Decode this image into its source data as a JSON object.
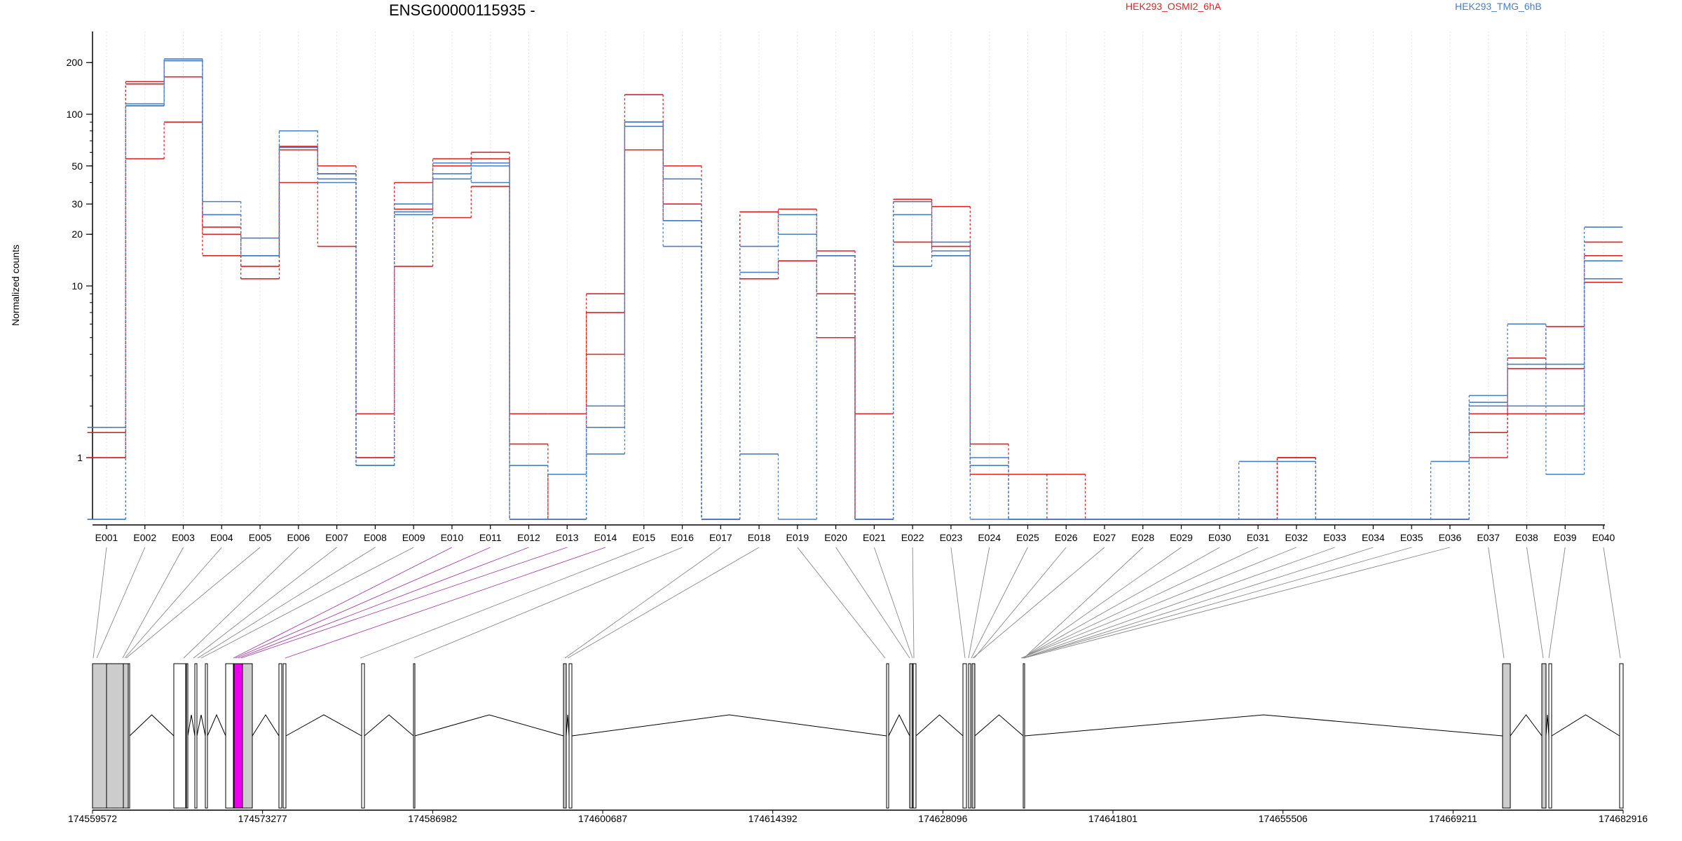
{
  "chart_data": {
    "type": "line",
    "title": "ENSG00000115935 -",
    "ylabel": "Normalized counts",
    "yscale": "log",
    "yticks": [
      1,
      10,
      20,
      30,
      50,
      100,
      200
    ],
    "ylim": [
      0.5,
      250
    ],
    "legend_placement": "top",
    "grid": "vertical dotted",
    "categories": [
      "E001",
      "E002",
      "E003",
      "E004",
      "E005",
      "E006",
      "E007",
      "E008",
      "E009",
      "E010",
      "E011",
      "E012",
      "E013",
      "E014",
      "E015",
      "E016",
      "E017",
      "E018",
      "E019",
      "E020",
      "E021",
      "E022",
      "E023",
      "E024",
      "E025",
      "E026",
      "E027",
      "E028",
      "E029",
      "E030",
      "E031",
      "E032",
      "E033",
      "E034",
      "E035",
      "E036",
      "E037",
      "E038",
      "E039",
      "E040"
    ],
    "series": [
      {
        "name": "HEK293_OSMI2_6hA",
        "color": "#d62728",
        "values": [
          1.4,
          150,
          165,
          22,
          15,
          62,
          50,
          1.0,
          40,
          55,
          60,
          1.8,
          1.8,
          9,
          130,
          50,
          0.5,
          27,
          28,
          9,
          1.8,
          31,
          29,
          1.2,
          0.8,
          0.8,
          0.5,
          0.5,
          0.5,
          0.5,
          0.5,
          1.0,
          0.5,
          0.5,
          0.5,
          0.5,
          1.4,
          3.8,
          3.3,
          18
        ]
      },
      {
        "name": "",
        "color": "#d62728",
        "values": [
          1.0,
          155,
          205,
          20,
          13,
          65,
          45,
          1.0,
          28,
          50,
          55,
          0.5,
          0.8,
          7,
          90,
          30,
          0.5,
          27,
          20,
          16,
          0.5,
          32,
          17,
          0.8,
          0.5,
          0.5,
          0.5,
          0.5,
          0.5,
          0.5,
          0.5,
          1.0,
          0.5,
          0.5,
          0.5,
          0.5,
          1.0,
          1.8,
          1.8,
          15
        ]
      },
      {
        "name": "",
        "color": "#d62728",
        "values": [
          1.0,
          55,
          90,
          15,
          11,
          40,
          17,
          1.8,
          13,
          25,
          38,
          1.2,
          0.5,
          4,
          62,
          24,
          0.5,
          11,
          14,
          5,
          0.5,
          18,
          15,
          0.8,
          0.8,
          0.5,
          0.5,
          0.5,
          0.5,
          0.5,
          0.5,
          1.0,
          0.5,
          0.5,
          0.5,
          0.5,
          1.8,
          3.3,
          5.8,
          10.5
        ]
      },
      {
        "name": "HEK293_TMG_6hB",
        "color": "#4a7fbf",
        "values": [
          1.5,
          115,
          210,
          31,
          19,
          80,
          45,
          0.9,
          30,
          45,
          50,
          0.9,
          0.8,
          2,
          90,
          42,
          0.5,
          17,
          26,
          15,
          0.5,
          26,
          18,
          1.0,
          0.5,
          0.5,
          0.5,
          0.5,
          0.5,
          0.5,
          0.95,
          0.95,
          0.5,
          0.5,
          0.5,
          0.95,
          2.1,
          6.0,
          3.5,
          22
        ]
      },
      {
        "name": "",
        "color": "#4a7fbf",
        "values": [
          0.5,
          112,
          205,
          26,
          15,
          80,
          42,
          0.9,
          27,
          52,
          40,
          0.5,
          0.5,
          1.5,
          90,
          24,
          0.5,
          12,
          20,
          15,
          0.5,
          31,
          16,
          0.9,
          0.5,
          0.5,
          0.5,
          0.5,
          0.5,
          0.5,
          0.5,
          0.5,
          0.5,
          0.5,
          0.5,
          0.5,
          2.3,
          3.5,
          2.0,
          11
        ]
      },
      {
        "name": "",
        "color": "#4a7fbf",
        "values": [
          0.5,
          112,
          205,
          26,
          15,
          64,
          40,
          0.9,
          26,
          42,
          52,
          0.5,
          0.5,
          1.05,
          85,
          17,
          0.5,
          1.05,
          0.5,
          15,
          0.5,
          13,
          15,
          0.5,
          0.5,
          0.5,
          0.5,
          0.5,
          0.5,
          0.5,
          0.5,
          0.5,
          0.5,
          0.5,
          0.5,
          0.5,
          2.0,
          2.0,
          0.8,
          14
        ]
      }
    ]
  },
  "gene_model": {
    "coordinate_labels": [
      "174559572",
      "174573277",
      "174586982",
      "174600687",
      "174614392",
      "174628096",
      "174641801",
      "174655506",
      "174669211",
      "174682916"
    ],
    "highlight_color": "#ee00ee",
    "exon_fill_color": "#cccccc"
  }
}
